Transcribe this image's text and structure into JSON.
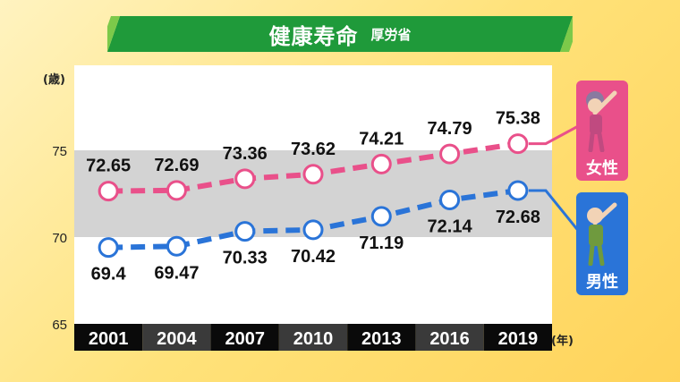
{
  "header": {
    "title": "健康寿命",
    "source": "厚労省"
  },
  "y_unit": "(歳)",
  "x_unit": "(年)",
  "legend": {
    "female": "女性",
    "male": "男性"
  },
  "colors": {
    "female": "#e9508a",
    "male": "#2a74d8",
    "banner": "#1f9a3a",
    "band": "#d3d3d3"
  },
  "chart_data": {
    "type": "line",
    "categories": [
      "2001",
      "2004",
      "2007",
      "2010",
      "2013",
      "2016",
      "2019"
    ],
    "series": [
      {
        "name": "女性",
        "values": [
          72.65,
          72.69,
          73.36,
          73.62,
          74.21,
          74.79,
          75.38
        ]
      },
      {
        "name": "男性",
        "values": [
          69.4,
          69.47,
          70.33,
          70.42,
          71.19,
          72.14,
          72.68
        ]
      }
    ],
    "yticks": [
      65,
      70,
      75
    ],
    "ylim": [
      65,
      80
    ],
    "shaded_band": [
      70,
      75
    ],
    "grid": false
  }
}
